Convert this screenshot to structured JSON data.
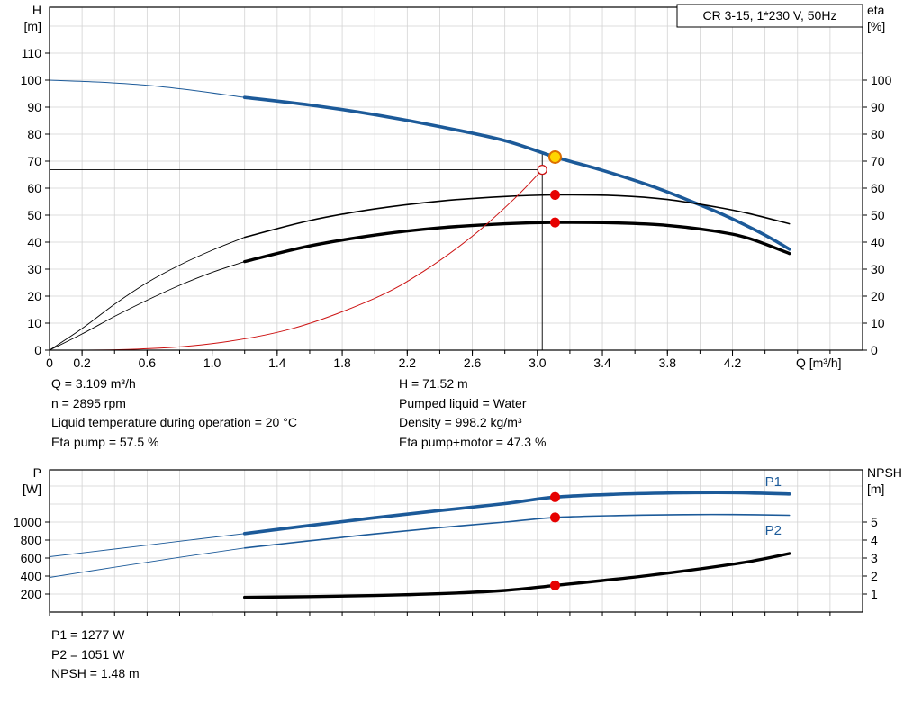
{
  "title": "CR 3-15, 1*230 V, 50Hz",
  "colors": {
    "curve_blue": "#1c5a99",
    "curve_black": "#000000",
    "curve_red": "#cc1111",
    "marker_red": "#e60000",
    "marker_yellow_fill": "#ffd500",
    "marker_yellow_stroke": "#dd7000",
    "grid": "#d3d3d3",
    "axis": "#000000",
    "text": "#000000"
  },
  "results": {
    "q": "Q = 3.109 m³/h",
    "n": "n = 2895 rpm",
    "liquid_temp": "Liquid temperature during operation = 20 °C",
    "eta_pump": "Eta pump = 57.5 %",
    "h": "H = 71.52 m",
    "pumped_liquid": "Pumped liquid = Water",
    "density": "Density = 998.2 kg/m³",
    "eta_pump_motor": "Eta pump+motor = 47.3 %",
    "p1": "P1 = 1277 W",
    "p2": "P2 = 1051 W",
    "npsh": "NPSH = 1.48 m"
  },
  "chart_data": [
    {
      "type": "line",
      "name": "qh-eta-chart",
      "title": "CR 3-15, 1*230 V, 50Hz",
      "x_label": "Q [m³/h]",
      "y_left_label": [
        "H",
        "[m]"
      ],
      "y_right_label": [
        "eta",
        "[%]"
      ],
      "x_range": [
        0,
        5.0
      ],
      "x_grid_step": 0.2,
      "x_tick_labels": [
        "0",
        "0.2",
        "0.6",
        "1.0",
        "1.4",
        "1.8",
        "2.2",
        "2.6",
        "3.0",
        "3.4",
        "3.8",
        "4.2"
      ],
      "y_left_range": [
        0,
        127
      ],
      "y_left_grid_step": 10,
      "y_left_ticks": [
        "0",
        "10",
        "20",
        "30",
        "40",
        "50",
        "60",
        "70",
        "80",
        "90",
        "100",
        "110"
      ],
      "y_right_range": [
        0,
        127
      ],
      "y_right_ticks": [
        "0",
        "10",
        "20",
        "30",
        "40",
        "50",
        "60",
        "70",
        "80",
        "90",
        "100"
      ],
      "series": [
        {
          "name": "h-curve-lead",
          "axis": "left",
          "color": "#1c5a99",
          "width": 1,
          "points": [
            [
              0,
              100
            ],
            [
              0.3,
              99.3
            ],
            [
              0.6,
              98.1
            ],
            [
              0.9,
              96.1
            ],
            [
              1.2,
              93.6
            ]
          ]
        },
        {
          "name": "h-curve",
          "axis": "left",
          "color": "#1c5a99",
          "width": 3.6,
          "points": [
            [
              1.2,
              93.6
            ],
            [
              1.6,
              90.8
            ],
            [
              2.0,
              87.2
            ],
            [
              2.4,
              82.8
            ],
            [
              2.8,
              77.6
            ],
            [
              3.109,
              71.52
            ],
            [
              3.4,
              66.6
            ],
            [
              3.7,
              60.8
            ],
            [
              4.0,
              53.8
            ],
            [
              4.2,
              48.6
            ],
            [
              4.4,
              42.6
            ],
            [
              4.55,
              37.4
            ]
          ]
        },
        {
          "name": "eta-pump-lead",
          "axis": "left",
          "color": "#000000",
          "width": 0.9,
          "points": [
            [
              0,
              0
            ],
            [
              0.2,
              8
            ],
            [
              0.4,
              17
            ],
            [
              0.6,
              25
            ],
            [
              0.8,
              31.5
            ],
            [
              1.0,
              37
            ],
            [
              1.2,
              41.8
            ]
          ]
        },
        {
          "name": "eta-pump",
          "axis": "left",
          "color": "#000000",
          "width": 1.6,
          "points": [
            [
              1.2,
              41.8
            ],
            [
              1.6,
              48
            ],
            [
              2.0,
              52.3
            ],
            [
              2.4,
              55.2
            ],
            [
              2.8,
              56.9
            ],
            [
              3.109,
              57.5
            ],
            [
              3.5,
              57.2
            ],
            [
              3.8,
              55.8
            ],
            [
              4.1,
              53
            ],
            [
              4.3,
              50.6
            ],
            [
              4.55,
              46.8
            ]
          ]
        },
        {
          "name": "eta-pump-motor-lead",
          "axis": "left",
          "color": "#000000",
          "width": 0.9,
          "points": [
            [
              0,
              0
            ],
            [
              0.2,
              6
            ],
            [
              0.4,
              12.5
            ],
            [
              0.6,
              18.5
            ],
            [
              0.8,
              24
            ],
            [
              1.0,
              28.8
            ],
            [
              1.2,
              32.8
            ]
          ]
        },
        {
          "name": "eta-pump-motor",
          "axis": "left",
          "color": "#000000",
          "width": 3.4,
          "points": [
            [
              1.2,
              32.8
            ],
            [
              1.6,
              38.6
            ],
            [
              2.0,
              42.6
            ],
            [
              2.4,
              45.3
            ],
            [
              2.8,
              46.8
            ],
            [
              3.109,
              47.3
            ],
            [
              3.5,
              47.1
            ],
            [
              3.8,
              46.2
            ],
            [
              4.1,
              44
            ],
            [
              4.3,
              41.4
            ],
            [
              4.55,
              35.8
            ]
          ]
        },
        {
          "name": "system-curve",
          "axis": "left",
          "color": "#cc1111",
          "width": 1,
          "points": [
            [
              0,
              0
            ],
            [
              0.5,
              0.3
            ],
            [
              1.0,
              2.4
            ],
            [
              1.5,
              8.1
            ],
            [
              2.0,
              19.2
            ],
            [
              2.3,
              29.2
            ],
            [
              2.6,
              42.2
            ],
            [
              2.85,
              55.6
            ],
            [
              3.03,
              66.8
            ]
          ]
        }
      ],
      "guides": [
        {
          "name": "duty-h-guide",
          "type": "h",
          "y": 66.8,
          "x1": 0,
          "x2": 3.03
        },
        {
          "name": "duty-q-guide",
          "type": "v",
          "x": 3.03,
          "y1": 0,
          "y2": 72.5
        }
      ],
      "markers": [
        {
          "name": "duty-point-requested",
          "style": "open-red",
          "axis": "left",
          "x": 3.03,
          "y": 66.8
        },
        {
          "name": "duty-point-qh",
          "style": "yellow",
          "axis": "left",
          "x": 3.109,
          "y": 71.52
        },
        {
          "name": "duty-point-eta-pump",
          "style": "red",
          "axis": "left",
          "x": 3.109,
          "y": 57.5
        },
        {
          "name": "duty-point-eta-pump-motor",
          "style": "red",
          "axis": "left",
          "x": 3.109,
          "y": 47.3
        }
      ]
    },
    {
      "type": "line",
      "name": "power-npsh-chart",
      "x_label": "",
      "y_left_label": [
        "P",
        "[W]"
      ],
      "y_right_label": [
        "NPSH",
        "[m]"
      ],
      "x_range": [
        0,
        5.0
      ],
      "x_grid_step": 0.2,
      "y_left_range": [
        0,
        1580
      ],
      "y_left_grid_step": 200,
      "y_left_ticks": [
        "200",
        "400",
        "600",
        "800",
        "1000"
      ],
      "y_right_range": [
        0,
        7.9
      ],
      "y_right_ticks": [
        "1",
        "2",
        "3",
        "4",
        "5"
      ],
      "series": [
        {
          "name": "p1-curve-lead",
          "axis": "left",
          "color": "#1c5a99",
          "width": 0.9,
          "points": [
            [
              0,
              615
            ],
            [
              0.4,
              700
            ],
            [
              0.8,
              787
            ],
            [
              1.2,
              872
            ]
          ]
        },
        {
          "name": "p1-curve",
          "axis": "left",
          "color": "#1c5a99",
          "width": 3.6,
          "points": [
            [
              1.2,
              872
            ],
            [
              1.6,
              962
            ],
            [
              2.0,
              1048
            ],
            [
              2.4,
              1128
            ],
            [
              2.8,
              1205
            ],
            [
              3.109,
              1277
            ],
            [
              3.5,
              1310
            ],
            [
              3.9,
              1325
            ],
            [
              4.2,
              1327
            ],
            [
              4.55,
              1312
            ]
          ]
        },
        {
          "name": "p2-curve-lead",
          "axis": "left",
          "color": "#1c5a99",
          "width": 0.9,
          "points": [
            [
              0,
              385
            ],
            [
              0.4,
              498
            ],
            [
              0.8,
              608
            ],
            [
              1.2,
              712
            ]
          ]
        },
        {
          "name": "p2-curve",
          "axis": "left",
          "color": "#1c5a99",
          "width": 1.6,
          "points": [
            [
              1.2,
              712
            ],
            [
              1.6,
              792
            ],
            [
              2.0,
              868
            ],
            [
              2.4,
              938
            ],
            [
              2.8,
              1000
            ],
            [
              3.109,
              1051
            ],
            [
              3.5,
              1072
            ],
            [
              3.9,
              1082
            ],
            [
              4.2,
              1083
            ],
            [
              4.55,
              1075
            ]
          ]
        },
        {
          "name": "npsh-curve",
          "axis": "right",
          "color": "#000000",
          "width": 3.4,
          "points": [
            [
              1.2,
              0.82
            ],
            [
              1.6,
              0.86
            ],
            [
              2.0,
              0.92
            ],
            [
              2.4,
              1.02
            ],
            [
              2.8,
              1.2
            ],
            [
              3.109,
              1.48
            ],
            [
              3.4,
              1.75
            ],
            [
              3.7,
              2.05
            ],
            [
              4.0,
              2.4
            ],
            [
              4.3,
              2.8
            ],
            [
              4.55,
              3.25
            ]
          ]
        }
      ],
      "guides": [],
      "markers": [
        {
          "name": "duty-point-p1",
          "style": "red",
          "axis": "left",
          "x": 3.109,
          "y": 1277
        },
        {
          "name": "duty-point-p2",
          "style": "red",
          "axis": "left",
          "x": 3.109,
          "y": 1051
        },
        {
          "name": "duty-point-npsh",
          "style": "red",
          "axis": "right",
          "x": 3.109,
          "y": 1.48
        }
      ],
      "curve_labels": [
        {
          "text": "P1",
          "x": 4.4,
          "y": 1400,
          "axis": "left",
          "color": "#1c5a99"
        },
        {
          "text": "P2",
          "x": 4.4,
          "y": 860,
          "axis": "left",
          "color": "#1c5a99"
        }
      ]
    }
  ]
}
